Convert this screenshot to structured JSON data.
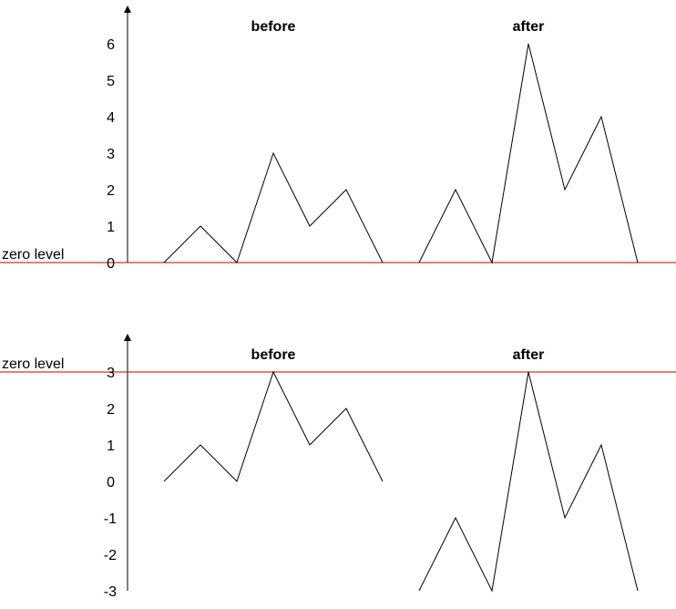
{
  "zero_level_label": "zero level",
  "zero_line_color": "#c00000",
  "line_color": "#000000",
  "panels": [
    {
      "before_title": "before",
      "after_title": "after",
      "y_ticks": [
        "0",
        "1",
        "2",
        "3",
        "4",
        "5",
        "6"
      ],
      "zero_level_value": 0,
      "before_values": [
        0,
        1,
        0,
        3,
        1,
        2,
        0
      ],
      "after_values": [
        0,
        2,
        0,
        6,
        2,
        4,
        0
      ]
    },
    {
      "before_title": "before",
      "after_title": "after",
      "y_ticks": [
        "-3",
        "-2",
        "-1",
        "0",
        "1",
        "2",
        "3"
      ],
      "zero_level_value": 3,
      "before_values": [
        0,
        1,
        0,
        3,
        1,
        2,
        0
      ],
      "after_values": [
        -3,
        -1,
        -3,
        3,
        -1,
        1,
        -3
      ]
    }
  ]
}
